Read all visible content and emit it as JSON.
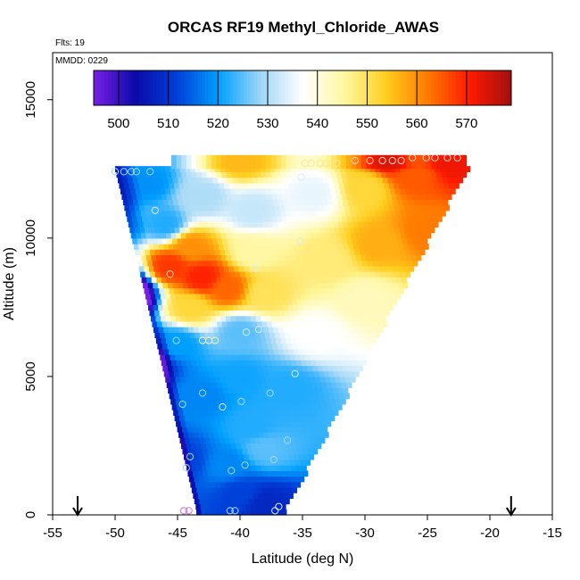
{
  "chart_data": {
    "type": "heatmap",
    "title": "ORCAS RF19 Methyl_Chloride_AWAS",
    "subtitle_flights": "Flts: 19",
    "subtitle_date": "MMDD: 0229",
    "xlabel": "Latitude (deg N)",
    "ylabel": "Altitude (m)",
    "xlim": [
      -55,
      -15
    ],
    "ylim": [
      0,
      16700
    ],
    "xticks": [
      -55,
      -50,
      -45,
      -40,
      -35,
      -30,
      -25,
      -20,
      -15
    ],
    "yticks": [
      0,
      5000,
      10000,
      15000
    ],
    "grid": false,
    "colorbar": {
      "placement": "top-inside",
      "range": [
        495,
        579
      ],
      "ticks": [
        500,
        510,
        520,
        530,
        540,
        550,
        560,
        570
      ],
      "colors": [
        "#7a1fe6",
        "#0a0aa8",
        "#0040d8",
        "#00a0ff",
        "#9fd6f6",
        "#ffffff",
        "#fff7a0",
        "#ffcf20",
        "#ff7a00",
        "#ff1a00",
        "#a01010"
      ]
    },
    "field_hull": {
      "top_altitude": 12500,
      "upper_stripe": {
        "lat_min": -45.5,
        "lat_max": -22,
        "alt_min": 12500,
        "alt_max": 13000
      },
      "left_edge": [
        [
          -50,
          12500
        ],
        [
          -43.5,
          200
        ]
      ],
      "right_edge": [
        [
          -22,
          12500
        ],
        [
          -36.5,
          200
        ]
      ],
      "bottom_altitude": 0
    },
    "field_anchors": [
      {
        "lat": -47.5,
        "alt": 12000,
        "value": 519
      },
      {
        "lat": -43,
        "alt": 11500,
        "value": 530
      },
      {
        "lat": -39,
        "alt": 11000,
        "value": 532
      },
      {
        "lat": -34,
        "alt": 11600,
        "value": 535
      },
      {
        "lat": -30,
        "alt": 11800,
        "value": 552
      },
      {
        "lat": -26,
        "alt": 12300,
        "value": 565
      },
      {
        "lat": -23,
        "alt": 12800,
        "value": 572
      },
      {
        "lat": -28,
        "alt": 13000,
        "value": 574
      },
      {
        "lat": -40,
        "alt": 12900,
        "value": 556
      },
      {
        "lat": -45.5,
        "alt": 9000,
        "value": 568
      },
      {
        "lat": -43,
        "alt": 8600,
        "value": 570
      },
      {
        "lat": -41,
        "alt": 8200,
        "value": 564
      },
      {
        "lat": -44,
        "alt": 9700,
        "value": 560
      },
      {
        "lat": -39,
        "alt": 9500,
        "value": 545
      },
      {
        "lat": -44,
        "alt": 7500,
        "value": 552
      },
      {
        "lat": -38,
        "alt": 8000,
        "value": 550
      },
      {
        "lat": -33,
        "alt": 9200,
        "value": 548
      },
      {
        "lat": -29,
        "alt": 9800,
        "value": 557
      },
      {
        "lat": -25,
        "alt": 10300,
        "value": 562
      },
      {
        "lat": -30,
        "alt": 7800,
        "value": 543
      },
      {
        "lat": -34,
        "alt": 6500,
        "value": 537
      },
      {
        "lat": -40,
        "alt": 6600,
        "value": 525
      },
      {
        "lat": -45,
        "alt": 6200,
        "value": 520
      },
      {
        "lat": -46,
        "alt": 10500,
        "value": 522
      },
      {
        "lat": -40,
        "alt": 5000,
        "value": 521
      },
      {
        "lat": -36,
        "alt": 4600,
        "value": 522
      },
      {
        "lat": -43,
        "alt": 4300,
        "value": 518
      },
      {
        "lat": -39,
        "alt": 3200,
        "value": 522
      },
      {
        "lat": -41,
        "alt": 1800,
        "value": 518
      },
      {
        "lat": -38,
        "alt": 2400,
        "value": 525
      },
      {
        "lat": -40,
        "alt": 800,
        "value": 512
      },
      {
        "lat": -38,
        "alt": 400,
        "value": 508
      },
      {
        "lat": -47,
        "alt": 5500,
        "value": 508
      },
      {
        "lat": -44.5,
        "alt": 2000,
        "value": 512
      },
      {
        "lat": -48.5,
        "alt": 8000,
        "value": 502
      }
    ],
    "samples": [
      {
        "lat": -50,
        "alt": 12400,
        "color": "#a8d8f8"
      },
      {
        "lat": -49.3,
        "alt": 12400,
        "color": "#a8d8f8"
      },
      {
        "lat": -48.7,
        "alt": 12400,
        "color": "#a8d8f8"
      },
      {
        "lat": -48.3,
        "alt": 12400,
        "color": "#a8d8f8"
      },
      {
        "lat": -47.2,
        "alt": 12400,
        "color": "#a8d8f8"
      },
      {
        "lat": -46.8,
        "alt": 11000,
        "color": "#d8eefa"
      },
      {
        "lat": -35.1,
        "alt": 12200,
        "color": "#d8eefa"
      },
      {
        "lat": -34.8,
        "alt": 12700,
        "color": "#ffe88a"
      },
      {
        "lat": -34.3,
        "alt": 12700,
        "color": "#ffe88a"
      },
      {
        "lat": -33.6,
        "alt": 12700,
        "color": "#ffe88a"
      },
      {
        "lat": -33.1,
        "alt": 12700,
        "color": "#ffe88a"
      },
      {
        "lat": -32.3,
        "alt": 12700,
        "color": "#ffe88a"
      },
      {
        "lat": -30.8,
        "alt": 12800,
        "color": "#ffd6c8"
      },
      {
        "lat": -29.6,
        "alt": 12800,
        "color": "#ffd6c8"
      },
      {
        "lat": -28.6,
        "alt": 12800,
        "color": "#ffd6c8"
      },
      {
        "lat": -27.8,
        "alt": 12800,
        "color": "#ffd6c8"
      },
      {
        "lat": -27.1,
        "alt": 12800,
        "color": "#ffd6c8"
      },
      {
        "lat": -26.2,
        "alt": 12900,
        "color": "#ffd6c8"
      },
      {
        "lat": -25.1,
        "alt": 12900,
        "color": "#ffd6c8"
      },
      {
        "lat": -24.4,
        "alt": 12900,
        "color": "#ffd6c8"
      },
      {
        "lat": -23.4,
        "alt": 12900,
        "color": "#ffd6c8"
      },
      {
        "lat": -22.6,
        "alt": 12900,
        "color": "#ffd6c8"
      },
      {
        "lat": -35.2,
        "alt": 9900,
        "color": "#d8eefa"
      },
      {
        "lat": -45.6,
        "alt": 8700,
        "color": "#ffd6c8"
      },
      {
        "lat": -38.8,
        "alt": 8900,
        "color": "#d8eefa"
      },
      {
        "lat": -35.7,
        "alt": 7500,
        "color": "#fff0b0"
      },
      {
        "lat": -38.5,
        "alt": 6700,
        "color": "#d8eefa"
      },
      {
        "lat": -39.5,
        "alt": 6600,
        "color": "#d8eefa"
      },
      {
        "lat": -45.1,
        "alt": 6300,
        "color": "#a8d8f8"
      },
      {
        "lat": -43,
        "alt": 6300,
        "color": "#fff0b0"
      },
      {
        "lat": -42.5,
        "alt": 6300,
        "color": "#fff0b0"
      },
      {
        "lat": -42,
        "alt": 6300,
        "color": "#fff0b0"
      },
      {
        "lat": -35.6,
        "alt": 5100,
        "color": "#d8eefa"
      },
      {
        "lat": -43,
        "alt": 4400,
        "color": "#a8d8f8"
      },
      {
        "lat": -37.6,
        "alt": 4400,
        "color": "#a8d8f8"
      },
      {
        "lat": -39.9,
        "alt": 4100,
        "color": "#a8d8f8"
      },
      {
        "lat": -44.6,
        "alt": 4000,
        "color": "#a8d8f8"
      },
      {
        "lat": -41.4,
        "alt": 3900,
        "color": "#d8eefa"
      },
      {
        "lat": -36.2,
        "alt": 2700,
        "color": "#a8d8f8"
      },
      {
        "lat": -44,
        "alt": 2100,
        "color": "#a8d8f8"
      },
      {
        "lat": -37.3,
        "alt": 2000,
        "color": "#a8d8f8"
      },
      {
        "lat": -39.6,
        "alt": 1800,
        "color": "#a8d8f8"
      },
      {
        "lat": -44.3,
        "alt": 1700,
        "color": "#a8d8f8"
      },
      {
        "lat": -40.7,
        "alt": 1600,
        "color": "#a8d8f8"
      },
      {
        "lat": -44.5,
        "alt": 150,
        "color": "#d070e0"
      },
      {
        "lat": -44.1,
        "alt": 150,
        "color": "#d070e0"
      },
      {
        "lat": -40.8,
        "alt": 150,
        "color": "#a8d8f8"
      },
      {
        "lat": -40.4,
        "alt": 150,
        "color": "#a8d8f8"
      },
      {
        "lat": -37.2,
        "alt": 150,
        "color": "#d8eefa"
      },
      {
        "lat": -36.9,
        "alt": 300,
        "color": "#d8eefa"
      }
    ],
    "arrows_at_lat": [
      -53,
      -18.3
    ]
  }
}
